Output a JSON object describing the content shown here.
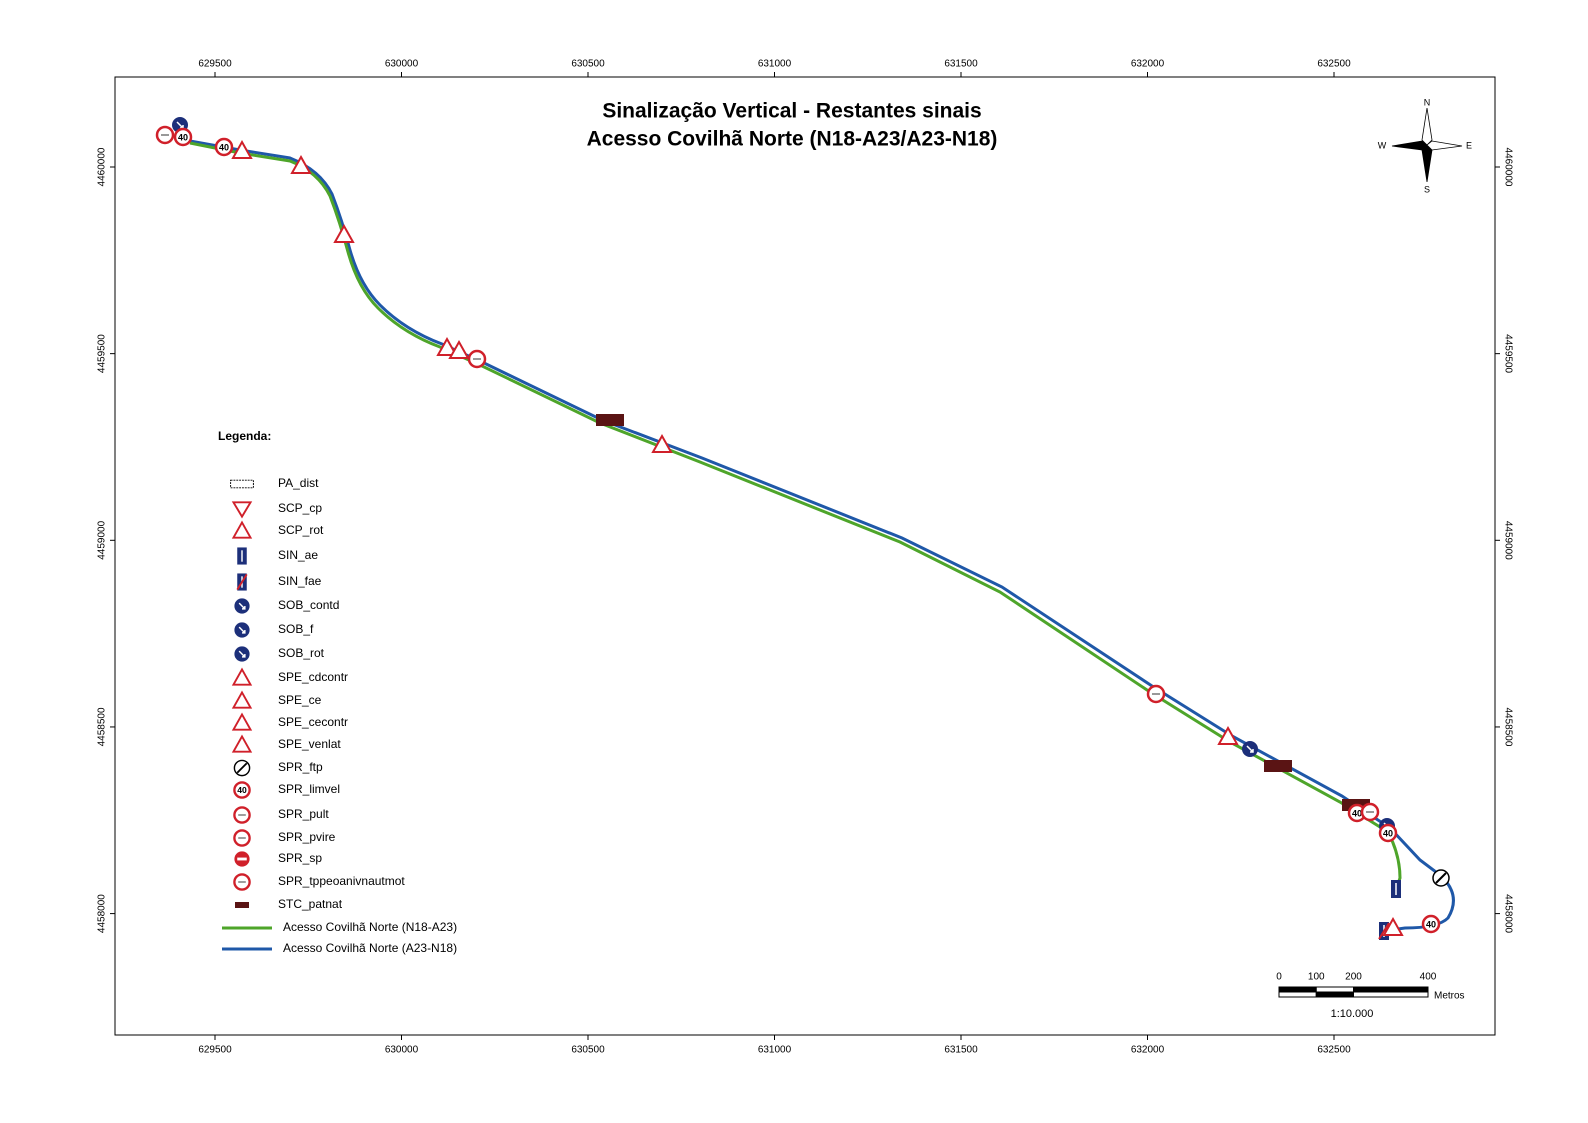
{
  "map": {
    "title": "Sinalização Vertical - Restantes sinais",
    "subtitle": "Acesso Covilhã Norte (N18-A23/A23-N18)",
    "xticks": [
      629500,
      630000,
      630500,
      631000,
      631500,
      632000,
      632500
    ],
    "yticks": [
      4460000,
      4459500,
      4459000,
      4458500,
      4458000
    ],
    "speed_label": "40",
    "compass": {
      "north": "N",
      "south": "S",
      "east": "E",
      "west": "W"
    }
  },
  "legend": {
    "title": "Legenda:",
    "items": [
      {
        "label": "PA_dist"
      },
      {
        "label": "SCP_cp"
      },
      {
        "label": "SCP_rot"
      },
      {
        "label": "SIN_ae"
      },
      {
        "label": "SIN_fae"
      },
      {
        "label": "SOB_contd"
      },
      {
        "label": "SOB_f"
      },
      {
        "label": "SOB_rot"
      },
      {
        "label": "SPE_cdcontr"
      },
      {
        "label": "SPE_ce"
      },
      {
        "label": "SPE_cecontr"
      },
      {
        "label": "SPE_venlat"
      },
      {
        "label": "SPR_ftp"
      },
      {
        "label": "SPR_limvel"
      },
      {
        "label": "SPR_pult"
      },
      {
        "label": "SPR_pvire"
      },
      {
        "label": "SPR_sp"
      },
      {
        "label": "SPR_tppeoanivnautmot"
      },
      {
        "label": "STC_patnat"
      },
      {
        "label": "Acesso Covilhã Norte (N18-A23)",
        "color": "#4ea52a"
      },
      {
        "label": "Acesso Covilhã Norte (A23-N18)",
        "color": "#1f58a8"
      }
    ]
  },
  "scale": {
    "ticks": [
      0,
      100,
      200,
      400
    ],
    "unit": "Metros",
    "ratio": "1:10.000"
  }
}
